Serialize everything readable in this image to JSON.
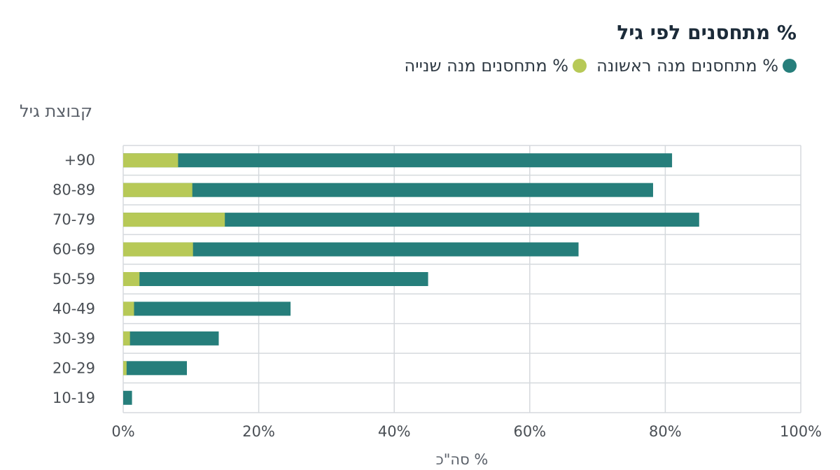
{
  "chart_data": {
    "type": "bar",
    "orientation": "horizontal",
    "stacked": true,
    "title": "% מתחסנים לפי גיל",
    "ylabel": "קבוצת גיל",
    "xlabel": "% סה\"כ",
    "categories": [
      "+90",
      "80-89",
      "70-79",
      "60-69",
      "50-59",
      "40-49",
      "30-39",
      "20-29",
      "10-19"
    ],
    "series": [
      {
        "name": "% מתחסנים מנה שנייה",
        "color": "#b7c957",
        "values": [
          8.1,
          10.2,
          15.0,
          10.3,
          2.4,
          1.6,
          1.0,
          0.5,
          0.0
        ]
      },
      {
        "name": "% מתחסנים מנה ראשונה",
        "color": "#267e7b",
        "values": [
          81.0,
          78.2,
          85.0,
          67.2,
          45.0,
          24.7,
          14.1,
          9.4,
          1.3
        ]
      }
    ],
    "xlim": [
      0,
      100
    ],
    "xticks": [
      0,
      20,
      40,
      60,
      80,
      100
    ],
    "xtick_labels": [
      "0%",
      "20%",
      "40%",
      "60%",
      "80%",
      "100%"
    ],
    "grid": true,
    "legend_position": "top-right"
  },
  "legend": {
    "first_dose": "% מתחסנים מנה ראשונה",
    "second_dose": "% מתחסנים מנה שנייה"
  },
  "colors": {
    "first_dose": "#267e7b",
    "second_dose": "#b7c957",
    "grid": "#d5d9dd"
  }
}
